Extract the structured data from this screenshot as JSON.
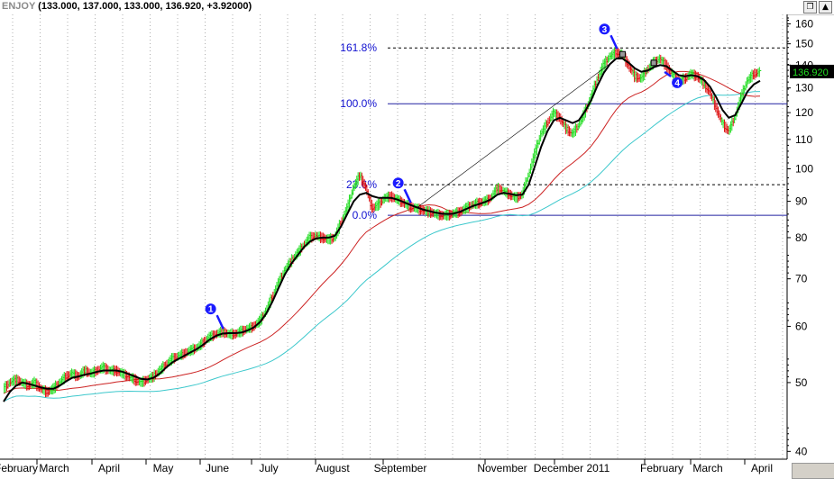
{
  "header": {
    "symbol": "ENJOY",
    "ohlc": "(133.000, 137.000, 133.000, 136.920, +3.92000)",
    "buttons": [
      "restore-icon",
      "scroll-up-icon"
    ]
  },
  "chart_data": {
    "type": "line",
    "title": "",
    "y_scale": "log",
    "ylim": [
      39,
      165
    ],
    "y_ticks": [
      40,
      50,
      60,
      70,
      80,
      90,
      100,
      110,
      120,
      130,
      140,
      150,
      160
    ],
    "x_months": [
      "February",
      "March",
      "April",
      "May",
      "June",
      "July",
      "August",
      "September",
      "November",
      "December 2011",
      "February",
      "March",
      "April"
    ],
    "last_price": "136.920",
    "colors": {
      "up": "#22dd22",
      "down": "#dd1111",
      "ma_short": "#000000",
      "ma_mid": "#cc2222",
      "ma_long": "#3cc8cc",
      "fib": "#1010d0",
      "price_box": "#000000",
      "price_text": "#22dd22"
    },
    "fib_levels": [
      {
        "label": "161.8%",
        "value": 148,
        "style": "dashed"
      },
      {
        "label": "100.0%",
        "value": 123.5,
        "style": "solid"
      },
      {
        "label": "23.6%",
        "value": 95,
        "style": "dashed"
      },
      {
        "label": "0.0%",
        "value": 86,
        "style": "solid"
      }
    ],
    "markers": [
      {
        "label": "1",
        "at": 36
      },
      {
        "label": "2",
        "at": 66
      },
      {
        "label": "3",
        "at": 99
      },
      {
        "label": "4",
        "at": 104
      }
    ],
    "prices": [
      49,
      50,
      50.5,
      50,
      49.5,
      50,
      49,
      48.5,
      49,
      50,
      51,
      51.5,
      51,
      52,
      51.5,
      52,
      52.5,
      52,
      52,
      51.5,
      51,
      50.5,
      50,
      50.5,
      51,
      52,
      53,
      54,
      54.5,
      55,
      55.5,
      56,
      57,
      58,
      58.5,
      59,
      58.5,
      58.5,
      59,
      59.5,
      60,
      61,
      63,
      66,
      69,
      72,
      74,
      76,
      78,
      80,
      80.5,
      80,
      79.5,
      80,
      84,
      88,
      94,
      98,
      94,
      88,
      89,
      91,
      91.5,
      90.5,
      89.5,
      88.5,
      88,
      87.5,
      87,
      86.5,
      86,
      86,
      86.5,
      87,
      88,
      89,
      89.5,
      90,
      91,
      94,
      93,
      92,
      91,
      92,
      98,
      105,
      112,
      116,
      120,
      118,
      114,
      112,
      115,
      120,
      126,
      134,
      140,
      144,
      146,
      145,
      140,
      135,
      134,
      138,
      141,
      143,
      140,
      136,
      133,
      134,
      136,
      135,
      132,
      128,
      122,
      116,
      113,
      118,
      126,
      133,
      136,
      136.9
    ],
    "ma_short": [
      47,
      48.5,
      49.5,
      50,
      49.8,
      49.5,
      49.2,
      49,
      49,
      49.5,
      50.2,
      50.8,
      51,
      51.3,
      51.5,
      51.8,
      52,
      52,
      52,
      51.8,
      51.4,
      51,
      50.6,
      50.5,
      50.8,
      51.5,
      52.5,
      53.4,
      54,
      54.6,
      55.2,
      55.8,
      56.6,
      57.5,
      58.2,
      58.6,
      58.7,
      58.7,
      58.8,
      59.2,
      59.8,
      60.8,
      62.5,
      65,
      68,
      71,
      73.5,
      75.5,
      77.5,
      79,
      79.8,
      80,
      80,
      80.5,
      83,
      86.5,
      90,
      92,
      92.5,
      91.5,
      91,
      91,
      91,
      90.5,
      89.8,
      89,
      88.3,
      87.7,
      87.2,
      86.8,
      86.5,
      86.4,
      86.5,
      87,
      87.8,
      88.6,
      89.2,
      89.8,
      90.6,
      92,
      92.5,
      92.2,
      91.8,
      92,
      95,
      101,
      107.5,
      113,
      117,
      118,
      117,
      116,
      117,
      120.5,
      125,
      131,
      136.5,
      140.5,
      143,
      143,
      141,
      138.5,
      137,
      137.5,
      139,
      140,
      139.5,
      137.5,
      135.5,
      135,
      135.5,
      135,
      133.5,
      130.5,
      126,
      121,
      118,
      119,
      123.5,
      128.5,
      131.5,
      133
    ]
  }
}
